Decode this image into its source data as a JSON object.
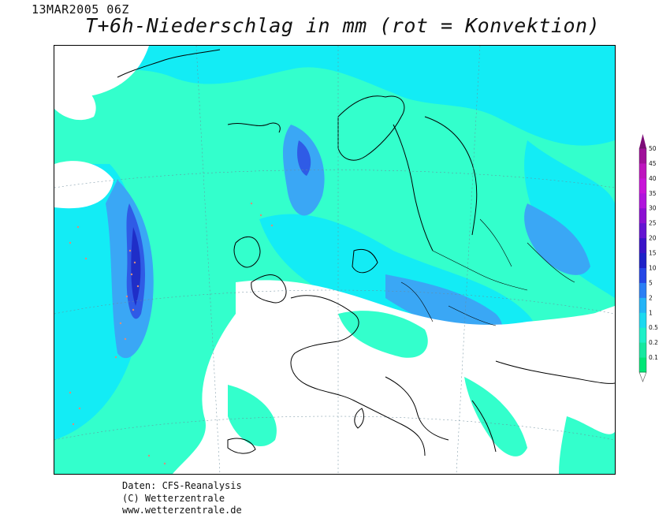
{
  "header": {
    "run_label": "13MAR2005 06Z",
    "title": "T+6h-Niederschlag in mm (rot = Konvektion)"
  },
  "legend": {
    "unit": "mm",
    "levels": [
      "0.1",
      "0.2",
      "0.5",
      "1",
      "2",
      "5",
      "10",
      "15",
      "20",
      "25",
      "30",
      "35",
      "40",
      "45",
      "50"
    ],
    "colors": [
      "#00e676",
      "#17e8a0",
      "#1ef0c8",
      "#1cd9f0",
      "#23b4f7",
      "#2a7ff5",
      "#2547e6",
      "#1e22c8",
      "#3a14c8",
      "#6414d2",
      "#8c10d2",
      "#b014dc",
      "#c814d8",
      "#be14be",
      "#a0109a"
    ],
    "cap_color": "#7d0c78"
  },
  "map": {
    "region": "Europe and North Atlantic",
    "land_color": "#ffffff",
    "precip_colors": {
      "light": "#33ffcc",
      "moderate": "#13ecf5",
      "heavy": "#3aa7f5",
      "very_heavy": "#2f5be6",
      "extreme": "#1f2ec8",
      "convection": "#d98c7a"
    }
  },
  "credits": {
    "line1": "Daten: CFS-Reanalysis",
    "line2": "(C) Wetterzentrale",
    "line3": "www.wetterzentrale.de"
  }
}
